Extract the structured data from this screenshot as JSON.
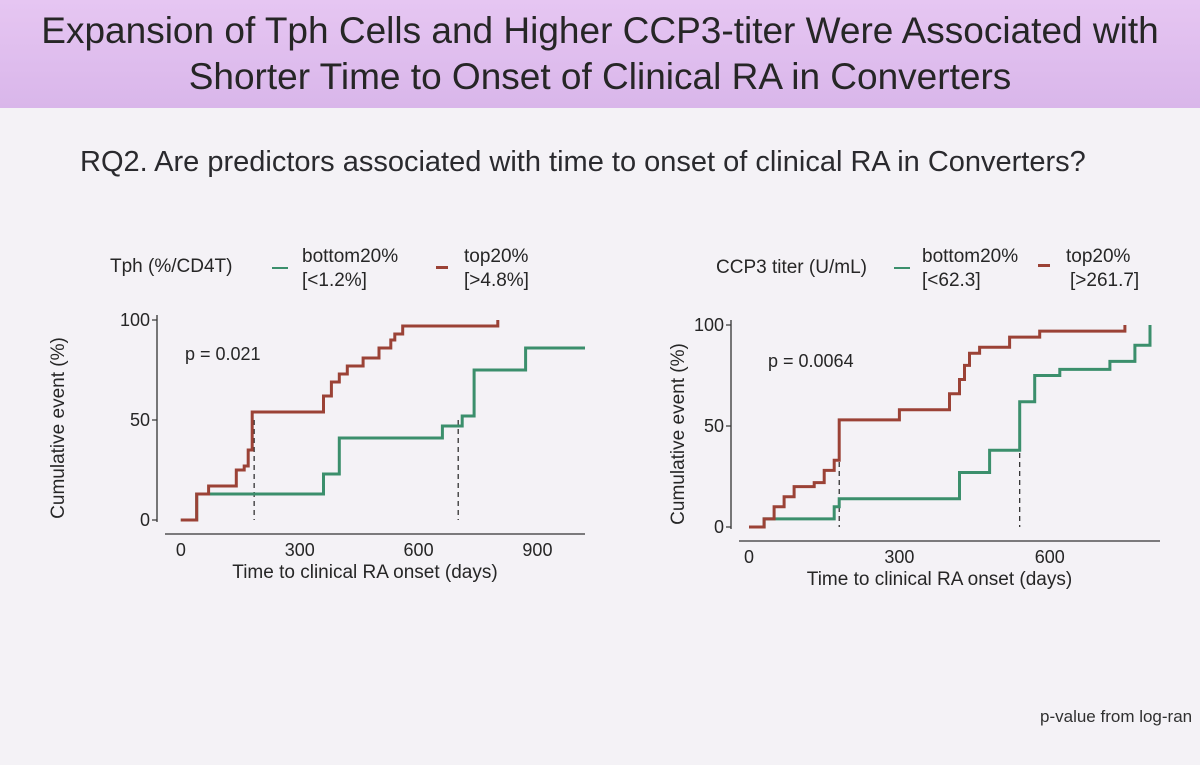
{
  "slide": {
    "title_line1": "Expansion of Tph Cells and Higher CCP3-titer Were Associated with",
    "title_line2": "Shorter Time to Onset of Clinical RA in Converters",
    "question": "RQ2. Are predictors associated with time to onset of clinical RA in Converters?",
    "footnote": "p-value from log-ran"
  },
  "colors": {
    "bottom": "#3b8f6c",
    "top": "#9b4236",
    "background": "#f4f2f6",
    "header": "#dcbaec"
  },
  "chart_data": [
    {
      "type": "line",
      "subtype": "step",
      "legend_title": "Tph (%/CD4T)",
      "legend_entries": [
        {
          "line1": "bottom20%",
          "line2": "[<1.2%]",
          "color": "#3b8f6c"
        },
        {
          "line1": "top20%",
          "line2": "[>4.8%]",
          "color": "#9b4236"
        }
      ],
      "annotation": "p = 0.021",
      "xlabel": "Time to clinical RA onset (days)",
      "ylabel": "Cumulative event (%)",
      "xlim": [
        -40,
        1020
      ],
      "ylim": [
        0,
        100
      ],
      "xticks": [
        "0",
        "300",
        "600",
        "900"
      ],
      "xtick_values": [
        0,
        300,
        600,
        900
      ],
      "yticks": [
        "0",
        "50",
        "100"
      ],
      "ytick_values": [
        0,
        50,
        100
      ],
      "series": [
        {
          "name": "bottom20%",
          "color": "#3b8f6c",
          "x": [
            0,
            40,
            40,
            360,
            360,
            400,
            400,
            660,
            660,
            710,
            710,
            740,
            740,
            870,
            870,
            1020
          ],
          "y": [
            0,
            0,
            13,
            13,
            23,
            23,
            41,
            41,
            47,
            47,
            52,
            52,
            75,
            75,
            86,
            86
          ],
          "median": 700
        },
        {
          "name": "top20%",
          "color": "#9b4236",
          "x": [
            0,
            40,
            40,
            70,
            70,
            140,
            140,
            160,
            160,
            170,
            170,
            180,
            180,
            360,
            360,
            380,
            380,
            400,
            400,
            420,
            420,
            460,
            460,
            500,
            500,
            530,
            530,
            540,
            540,
            560,
            560,
            800,
            800
          ],
          "y": [
            0,
            0,
            13,
            13,
            17,
            17,
            25,
            25,
            27,
            27,
            35,
            35,
            54,
            54,
            62,
            62,
            69,
            69,
            73,
            73,
            77,
            77,
            81,
            81,
            86,
            86,
            90,
            90,
            93,
            93,
            97,
            97,
            100
          ],
          "median": 185
        }
      ]
    },
    {
      "type": "line",
      "subtype": "step",
      "legend_title": "CCP3 titer (U/mL)",
      "legend_entries": [
        {
          "line1": "bottom20%",
          "line2": "[<62.3]",
          "color": "#3b8f6c"
        },
        {
          "line1": "top20%",
          "line2": "[>261.7]",
          "color": "#9b4236"
        }
      ],
      "annotation": "p = 0.0064",
      "xlabel": "Time to clinical RA onset (days)",
      "ylabel": "Cumulative event (%)",
      "xlim": [
        -20,
        820
      ],
      "ylim": [
        0,
        100
      ],
      "xticks": [
        "0",
        "300",
        "600"
      ],
      "xtick_values": [
        0,
        300,
        600
      ],
      "yticks": [
        "0",
        "50",
        "100"
      ],
      "ytick_values": [
        0,
        50,
        100
      ],
      "series": [
        {
          "name": "bottom20%",
          "color": "#3b8f6c",
          "x": [
            0,
            30,
            30,
            170,
            170,
            180,
            180,
            420,
            420,
            480,
            480,
            540,
            540,
            570,
            570,
            620,
            620,
            720,
            720,
            770,
            770,
            800,
            800
          ],
          "y": [
            0,
            0,
            4,
            4,
            10,
            10,
            14,
            14,
            27,
            27,
            38,
            38,
            62,
            62,
            75,
            75,
            78,
            78,
            82,
            82,
            90,
            90,
            100
          ],
          "median": 540
        },
        {
          "name": "top20%",
          "color": "#9b4236",
          "x": [
            0,
            30,
            30,
            50,
            50,
            70,
            70,
            90,
            90,
            130,
            130,
            150,
            150,
            170,
            170,
            180,
            180,
            300,
            300,
            400,
            400,
            420,
            420,
            430,
            430,
            440,
            440,
            460,
            460,
            520,
            520,
            580,
            580,
            750,
            750
          ],
          "y": [
            0,
            0,
            4,
            4,
            10,
            10,
            15,
            15,
            20,
            20,
            22,
            22,
            28,
            28,
            33,
            33,
            53,
            53,
            58,
            58,
            66,
            66,
            73,
            73,
            80,
            80,
            86,
            86,
            89,
            89,
            94,
            94,
            97,
            97,
            100
          ],
          "median": 180
        }
      ]
    }
  ]
}
